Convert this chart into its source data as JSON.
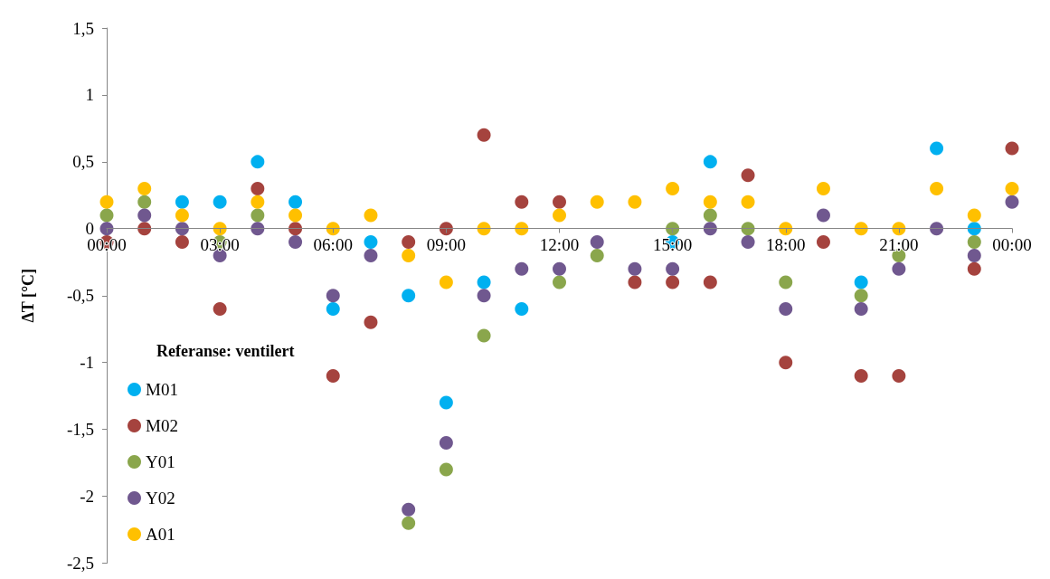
{
  "chart_data": {
    "type": "scatter",
    "ylabel": "ΔT [°C]",
    "legend_title": "Referanse: ventilert",
    "legend": "bottom left",
    "marker": "circle",
    "grid": false,
    "x": [
      0,
      1,
      2,
      3,
      4,
      5,
      6,
      7,
      8,
      9,
      10,
      11,
      12,
      13,
      14,
      15,
      16,
      17,
      18,
      19,
      20,
      21,
      22,
      23,
      24
    ],
    "xlim": [
      0,
      24
    ],
    "xticks": [
      {
        "value": 0,
        "label": "00:00"
      },
      {
        "value": 3,
        "label": "03:00"
      },
      {
        "value": 6,
        "label": "06:00"
      },
      {
        "value": 9,
        "label": "09:00"
      },
      {
        "value": 12,
        "label": "12:00"
      },
      {
        "value": 15,
        "label": "15:00"
      },
      {
        "value": 18,
        "label": "18:00"
      },
      {
        "value": 21,
        "label": "21:00"
      },
      {
        "value": 24,
        "label": "00:00"
      }
    ],
    "ylim": [
      -2.5,
      1.5
    ],
    "yticks": [
      {
        "value": -2.5,
        "label": "-2,5"
      },
      {
        "value": -2,
        "label": "-2"
      },
      {
        "value": -1.5,
        "label": "-1,5"
      },
      {
        "value": -1,
        "label": "-1"
      },
      {
        "value": -0.5,
        "label": "-0,5"
      },
      {
        "value": 0,
        "label": "0"
      },
      {
        "value": 0.5,
        "label": "0,5"
      },
      {
        "value": 1,
        "label": "1"
      },
      {
        "value": 1.5,
        "label": "1,5"
      }
    ],
    "series": [
      {
        "name": "M01",
        "color": "#00b0f0",
        "values": [
          null,
          null,
          0.2,
          0.2,
          0.5,
          0.2,
          -0.6,
          -0.1,
          -0.5,
          -1.3,
          -0.4,
          -0.6,
          null,
          null,
          null,
          -0.1,
          0.5,
          null,
          null,
          null,
          -0.4,
          null,
          0.6,
          0,
          null
        ]
      },
      {
        "name": "M02",
        "color": "#a5433e",
        "values": [
          -0.1,
          0,
          -0.1,
          -0.6,
          0.3,
          0,
          -1.1,
          -0.7,
          -0.1,
          0,
          0.7,
          0.2,
          0.2,
          null,
          -0.4,
          -0.4,
          -0.4,
          0.4,
          -1,
          -0.1,
          -1.1,
          -1.1,
          null,
          -0.3,
          0.6
        ]
      },
      {
        "name": "Y01",
        "color": "#8aa64c",
        "values": [
          0.1,
          0.2,
          null,
          -0.1,
          0.1,
          null,
          null,
          null,
          -2.2,
          -1.8,
          -0.8,
          null,
          -0.4,
          -0.2,
          null,
          0,
          0.1,
          0,
          -0.4,
          null,
          -0.5,
          -0.2,
          null,
          -0.1,
          null
        ]
      },
      {
        "name": "Y02",
        "color": "#70588f",
        "values": [
          0,
          0.1,
          0,
          -0.2,
          0,
          -0.1,
          -0.5,
          -0.2,
          -2.1,
          -1.6,
          -0.5,
          -0.3,
          -0.3,
          -0.1,
          -0.3,
          -0.3,
          0,
          -0.1,
          -0.6,
          0.1,
          -0.6,
          -0.3,
          0,
          -0.2,
          0.2
        ]
      },
      {
        "name": "A01",
        "color": "#ffc000",
        "values": [
          0.2,
          0.3,
          0.1,
          0,
          0.2,
          0.1,
          0,
          0.1,
          -0.2,
          -0.4,
          0,
          0,
          0.1,
          0.2,
          0.2,
          0.3,
          0.2,
          0.2,
          0,
          0.3,
          0,
          0,
          0.3,
          0.1,
          0.3
        ]
      }
    ]
  }
}
